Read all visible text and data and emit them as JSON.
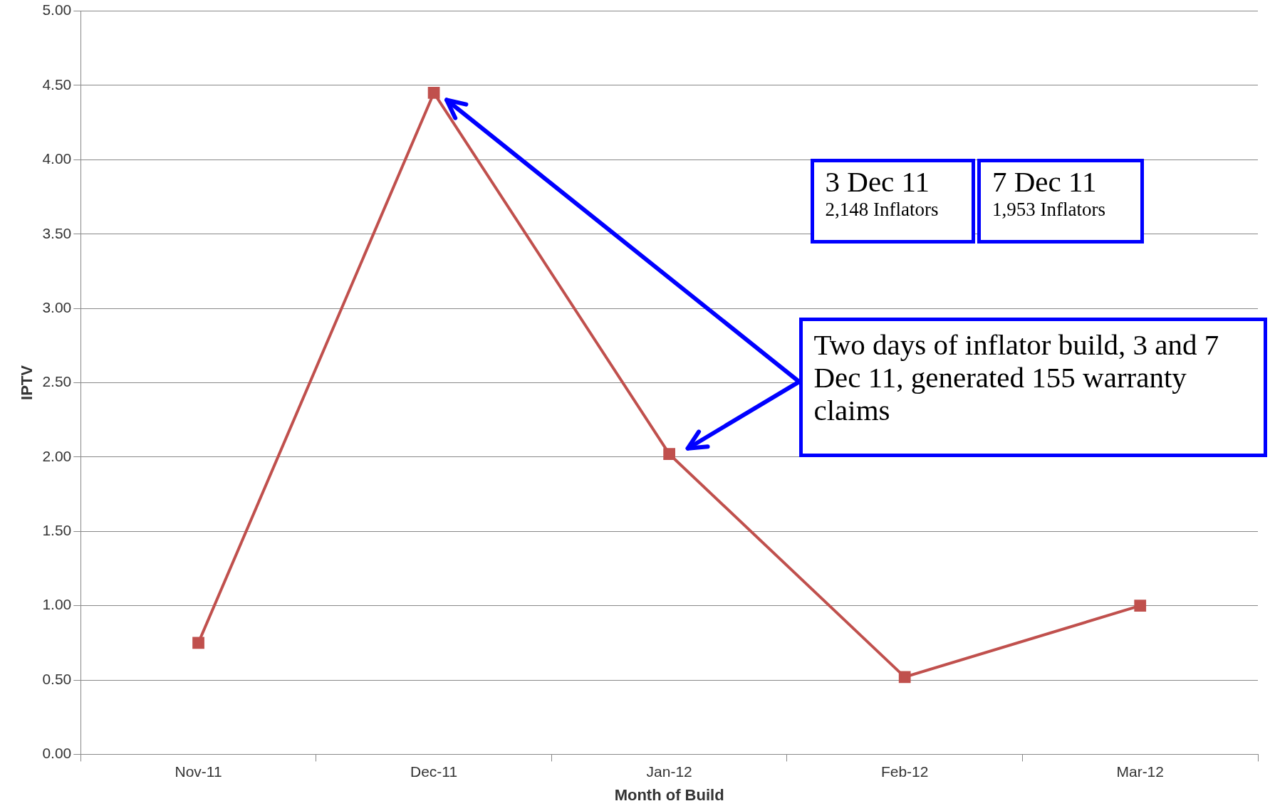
{
  "chart_data": {
    "type": "line",
    "xlabel": "Month of Build",
    "ylabel": "IPTV",
    "categories": [
      "Nov-11",
      "Dec-11",
      "Jan-12",
      "Feb-12",
      "Mar-12"
    ],
    "series": [
      {
        "color": "#c0504d",
        "values": [
          0.75,
          4.45,
          2.02,
          0.52,
          1.0
        ]
      }
    ],
    "ylim": [
      0,
      5
    ],
    "yticks": [
      {
        "value": 0,
        "label": "0.00"
      },
      {
        "value": 0.5,
        "label": "0.50"
      },
      {
        "value": 1,
        "label": "1.00"
      },
      {
        "value": 1.5,
        "label": "1.50"
      },
      {
        "value": 2,
        "label": "2.00"
      },
      {
        "value": 2.5,
        "label": "2.50"
      },
      {
        "value": 3,
        "label": "3.00"
      },
      {
        "value": 3.5,
        "label": "3.50"
      },
      {
        "value": 4,
        "label": "4.00"
      },
      {
        "value": 4.5,
        "label": "4.50"
      },
      {
        "value": 5,
        "label": "5.00"
      }
    ],
    "grid": "y",
    "marker": "square",
    "line_style": "solid",
    "legend": false,
    "annotations": [
      "3 Dec 11\n2,148 Inflators",
      "7 Dec 11\n1,953 Inflators",
      "Two days of inflator build, 3 and 7 Dec 11, generated 155 warranty claims"
    ]
  }
}
